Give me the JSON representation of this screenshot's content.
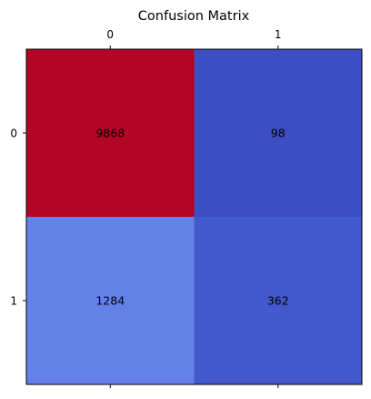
{
  "chart_data": {
    "type": "heatmap",
    "title": "Confusion Matrix",
    "x_labels": [
      "0",
      "1"
    ],
    "y_labels": [
      "0",
      "1"
    ],
    "values": [
      [
        9868,
        98
      ],
      [
        1284,
        362
      ]
    ],
    "cell_labels": [
      [
        "9868",
        "98"
      ],
      [
        "1284",
        "362"
      ]
    ],
    "colormap": "coolwarm",
    "x_tick_position": "top",
    "grid": false,
    "cell_colors": [
      [
        "#b40426",
        "#3c4ec2"
      ],
      [
        "#6282ea",
        "#4358cb"
      ]
    ]
  }
}
